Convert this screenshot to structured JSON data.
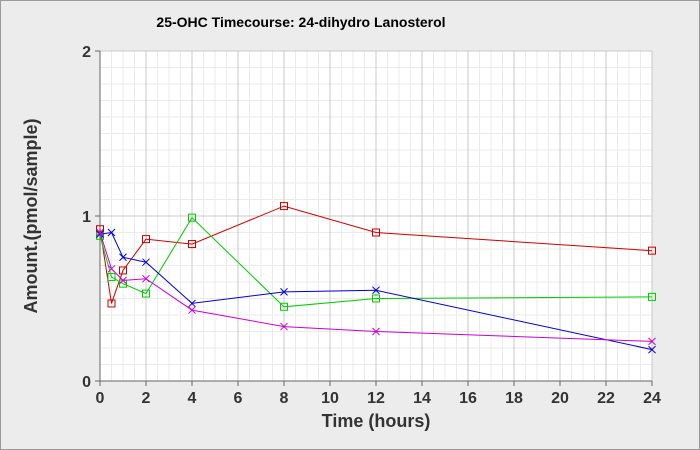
{
  "chart_data": {
    "type": "line",
    "title": "25-OHC Timecourse: 24-dihydro Lanosterol",
    "xlabel": "Time (hours)",
    "ylabel": "Amount.(pmol/sample)",
    "xlim": [
      0,
      24
    ],
    "ylim": [
      0,
      2
    ],
    "x_ticks": [
      "0",
      "2",
      "4",
      "6",
      "8",
      "10",
      "12",
      "14",
      "16",
      "18",
      "20",
      "22",
      "24"
    ],
    "y_ticks": [
      "0",
      "1",
      "2"
    ],
    "grid": true,
    "legend": "none",
    "series": [
      {
        "color": "#cc0000",
        "marker": "square",
        "points": [
          [
            0,
            0.92
          ],
          [
            0.5,
            0.47
          ],
          [
            1,
            0.67
          ],
          [
            2,
            0.86
          ],
          [
            4,
            0.83
          ],
          [
            8,
            1.06
          ],
          [
            12,
            0.9
          ],
          [
            24,
            0.79
          ]
        ]
      },
      {
        "color": "#00cc00",
        "marker": "square",
        "points": [
          [
            0,
            0.88
          ],
          [
            0.5,
            0.63
          ],
          [
            1,
            0.59
          ],
          [
            2,
            0.53
          ],
          [
            4,
            0.99
          ],
          [
            8,
            0.45
          ],
          [
            12,
            0.5
          ],
          [
            24,
            0.51
          ]
        ]
      },
      {
        "color": "#0000cc",
        "marker": "x",
        "points": [
          [
            0,
            0.89
          ],
          [
            0.5,
            0.9
          ],
          [
            1,
            0.75
          ],
          [
            2,
            0.72
          ],
          [
            4,
            0.47
          ],
          [
            8,
            0.54
          ],
          [
            12,
            0.55
          ],
          [
            24,
            0.19
          ]
        ]
      },
      {
        "color": "#cc00cc",
        "marker": "x",
        "points": [
          [
            0,
            0.9
          ],
          [
            0.5,
            0.68
          ],
          [
            1,
            0.61
          ],
          [
            2,
            0.62
          ],
          [
            4,
            0.43
          ],
          [
            8,
            0.33
          ],
          [
            12,
            0.3
          ],
          [
            24,
            0.24
          ]
        ]
      }
    ]
  }
}
